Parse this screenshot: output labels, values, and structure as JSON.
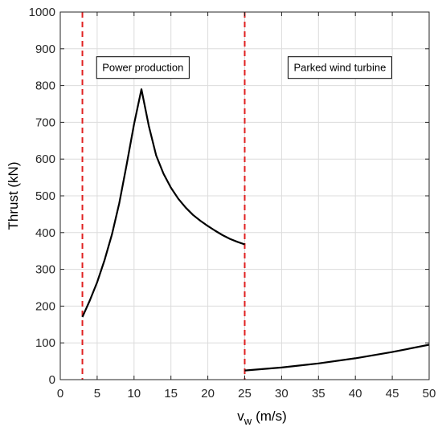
{
  "chart_data": {
    "type": "line",
    "title": "",
    "xlabel": "v",
    "xlabel_sub": "w",
    "xlabel_unit": "(m/s)",
    "ylabel": "Thrust (kN)",
    "xlim": [
      0,
      50
    ],
    "ylim": [
      0,
      1000
    ],
    "xticks": [
      "0",
      "5",
      "10",
      "15",
      "20",
      "25",
      "30",
      "35",
      "40",
      "45",
      "50"
    ],
    "yticks": [
      "0",
      "100",
      "200",
      "300",
      "400",
      "500",
      "600",
      "700",
      "800",
      "900",
      "1000"
    ],
    "grid": true,
    "series": [
      {
        "color": "#000000",
        "points": [
          [
            3,
            170
          ],
          [
            4,
            215
          ],
          [
            5,
            265
          ],
          [
            6,
            325
          ],
          [
            7,
            395
          ],
          [
            8,
            480
          ],
          [
            9,
            585
          ],
          [
            10,
            695
          ],
          [
            11,
            790
          ],
          [
            12,
            690
          ],
          [
            13,
            610
          ],
          [
            14,
            560
          ],
          [
            15,
            522
          ],
          [
            16,
            492
          ],
          [
            17,
            468
          ],
          [
            18,
            448
          ],
          [
            19,
            432
          ],
          [
            20,
            418
          ],
          [
            21,
            405
          ],
          [
            22,
            393
          ],
          [
            23,
            383
          ],
          [
            24,
            375
          ],
          [
            25,
            368
          ]
        ]
      },
      {
        "color": "#000000",
        "points": [
          [
            25,
            25
          ],
          [
            30,
            33
          ],
          [
            35,
            44
          ],
          [
            40,
            58
          ],
          [
            45,
            75
          ],
          [
            50,
            95
          ]
        ]
      }
    ],
    "vlines": [
      {
        "x": 3,
        "color": "#e02020",
        "style": "dashed"
      },
      {
        "x": 25,
        "color": "#e02020",
        "style": "dashed"
      }
    ],
    "annotations": [
      {
        "text": "Power production",
        "x": 11.2,
        "y": 850
      },
      {
        "text": "Parked wind turbine",
        "x": 37.9,
        "y": 850
      }
    ]
  }
}
